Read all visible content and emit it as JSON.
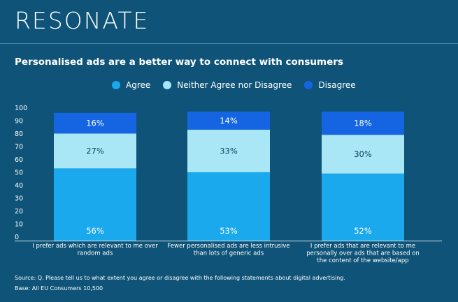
{
  "brand": "RESONATE",
  "colors": {
    "background": "#0f5478",
    "agree": "#1aa9ec",
    "neither": "#a9e7f7",
    "disagree": "#1565e3"
  },
  "chart_data": {
    "type": "bar",
    "stacked": true,
    "title": "Personalised ads are a better way to connect with consumers",
    "legend": [
      "Agree",
      "Neither Agree nor Disagree",
      "Disagree"
    ],
    "legend_position": "top",
    "ylim": [
      0,
      100
    ],
    "yticks": [
      "0",
      "10",
      "20",
      "30",
      "40",
      "50",
      "60",
      "70",
      "80",
      "90",
      "100"
    ],
    "categories": [
      [
        "I prefer ads which are relevant to me over",
        "random ads"
      ],
      [
        "Fewer personalised ads are less intrusive",
        "than lots of generic ads"
      ],
      [
        "I prefer ads that are relevant to me",
        "personally over ads that are based on",
        "the content of the website/app"
      ]
    ],
    "series": [
      {
        "name": "Agree",
        "values": [
          56,
          53,
          52
        ],
        "labels": [
          "56%",
          "53%",
          "52%"
        ]
      },
      {
        "name": "Neither Agree nor Disagree",
        "values": [
          27,
          33,
          30
        ],
        "labels": [
          "27%",
          "33%",
          "30%"
        ]
      },
      {
        "name": "Disagree",
        "values": [
          16,
          14,
          18
        ],
        "labels": [
          "16%",
          "14%",
          "18%"
        ]
      }
    ]
  },
  "footer": {
    "source": "Source: Q. Please tell us to what extent you agree or disagree with the following statements about digital advertising.",
    "base": "Base: All EU Consumers 10,500"
  }
}
